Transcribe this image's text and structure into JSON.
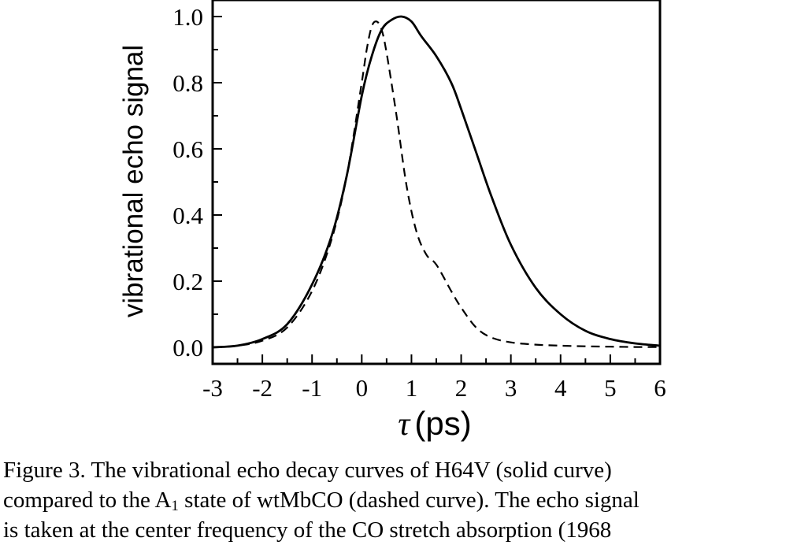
{
  "chart_data": {
    "type": "line",
    "title": "",
    "xlabel_symbol": "τ",
    "xlabel_unit": "(ps)",
    "ylabel": "vibrational echo signal",
    "xlim": [
      -3,
      6
    ],
    "ylim": [
      -0.05,
      1.05
    ],
    "xticks": [
      -3,
      -2,
      -1,
      0,
      1,
      2,
      3,
      4,
      5,
      6
    ],
    "xtick_labels": [
      "-3",
      "-2",
      "-1",
      "0",
      "1",
      "2",
      "3",
      "4",
      "5",
      "6"
    ],
    "yticks": [
      0.0,
      0.2,
      0.4,
      0.6,
      0.8,
      1.0
    ],
    "ytick_labels": [
      "0.0",
      "0.2",
      "0.4",
      "0.6",
      "0.8",
      "1.0"
    ],
    "grid": false,
    "series": [
      {
        "style": "solid",
        "x": [
          -3.0,
          -2.5,
          -2.0,
          -1.5,
          -1.0,
          -0.6,
          -0.3,
          0.0,
          0.2,
          0.4,
          0.6,
          0.8,
          1.0,
          1.2,
          1.5,
          1.8,
          2.0,
          2.3,
          2.6,
          3.0,
          3.5,
          4.0,
          4.5,
          5.0,
          5.5,
          6.0
        ],
        "y": [
          0.0,
          0.005,
          0.025,
          0.07,
          0.19,
          0.34,
          0.52,
          0.76,
          0.88,
          0.96,
          0.99,
          1.0,
          0.985,
          0.94,
          0.88,
          0.8,
          0.72,
          0.59,
          0.46,
          0.31,
          0.18,
          0.1,
          0.05,
          0.025,
          0.012,
          0.005
        ]
      },
      {
        "style": "dashed",
        "x": [
          -3.0,
          -2.5,
          -2.0,
          -1.5,
          -1.0,
          -0.6,
          -0.3,
          0.0,
          0.1,
          0.2,
          0.3,
          0.4,
          0.5,
          0.7,
          0.9,
          1.1,
          1.3,
          1.5,
          1.8,
          2.0,
          2.3,
          2.6,
          3.0,
          3.5,
          4.0,
          4.5,
          5.0,
          5.5,
          6.0
        ],
        "y": [
          0.0,
          0.005,
          0.02,
          0.06,
          0.17,
          0.33,
          0.52,
          0.8,
          0.9,
          0.97,
          0.985,
          0.96,
          0.89,
          0.7,
          0.49,
          0.35,
          0.28,
          0.25,
          0.17,
          0.12,
          0.06,
          0.03,
          0.015,
          0.008,
          0.005,
          0.003,
          0.002,
          0.001,
          0.001
        ]
      }
    ]
  },
  "caption": {
    "line1": "Figure 3.  The vibrational echo decay curves of H64V (solid curve)",
    "line2_a": "compared to the A",
    "line2_sub": "1",
    "line2_b": " state of wtMbCO (dashed curve). The echo signal",
    "line3": "is taken at the center frequency of the CO stretch absorption (1968"
  }
}
